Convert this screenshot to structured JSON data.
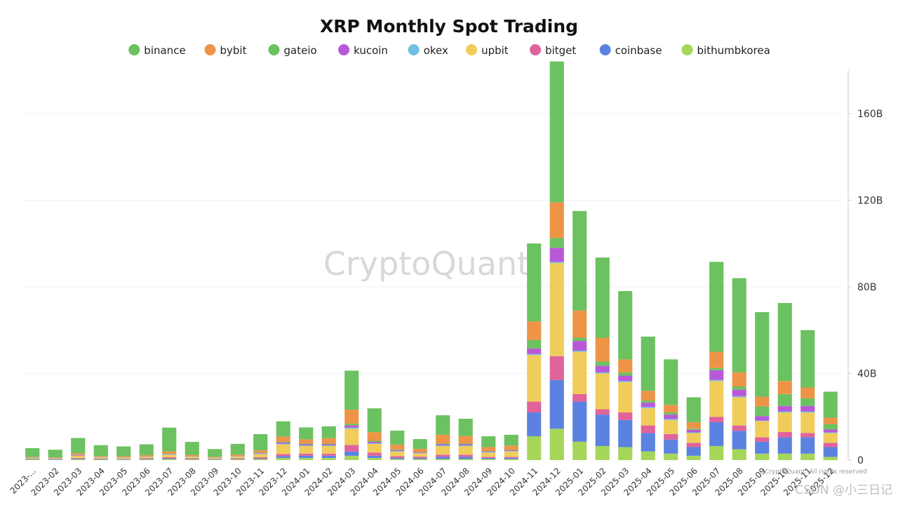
{
  "chart_data": {
    "type": "bar",
    "stacked": true,
    "title": "XRP Monthly Spot Trading",
    "xlabel": "",
    "ylabel": "",
    "ylim": [
      0,
      180
    ],
    "yticks": [
      0,
      40,
      80,
      120,
      160
    ],
    "ytick_labels": [
      "0",
      "40B",
      "80B",
      "120B",
      "160B"
    ],
    "y_axis_position": "right",
    "legend_position": "top-center",
    "watermark": "CryptoQuant",
    "footer_watermark": "CSDN @小三日记",
    "copyright": "CryptoQuant. All rights reserved",
    "categories": [
      "2023-...",
      "2023-02",
      "2023-03",
      "2023-04",
      "2023-05",
      "2023-06",
      "2023-07",
      "2023-08",
      "2023-09",
      "2023-10",
      "2023-11",
      "2023-12",
      "2024-01",
      "2024-02",
      "2024-03",
      "2024-04",
      "2024-05",
      "2024-06",
      "2024-07",
      "2024-08",
      "2024-09",
      "2024-10",
      "2024-11",
      "2024-12",
      "2025-01",
      "2025-02",
      "2025-03",
      "2025-04",
      "2025-05",
      "2025-06",
      "2025-07",
      "2025-08",
      "2025-09",
      "2025-10",
      "2025-11",
      "2025-12"
    ],
    "series": [
      {
        "name": "bithumbkorea",
        "color": "#a5d65a",
        "values": [
          0.3,
          0.2,
          0.4,
          0.3,
          0.2,
          0.3,
          0.5,
          0.3,
          0.2,
          0.3,
          0.5,
          1.0,
          1.0,
          1.0,
          2.0,
          1.0,
          0.5,
          0.5,
          0.5,
          0.5,
          0.5,
          0.5,
          11,
          14.5,
          8.5,
          6.5,
          6.0,
          4.0,
          3.0,
          2.0,
          6.5,
          5.0,
          3.0,
          3.0,
          3.0,
          1.5
        ]
      },
      {
        "name": "coinbase",
        "color": "#5b82e0",
        "values": [
          0.2,
          0.2,
          0.3,
          0.2,
          0.2,
          0.2,
          0.3,
          0.2,
          0.2,
          0.2,
          0.3,
          0.8,
          1.0,
          1.0,
          2.0,
          1.0,
          0.5,
          0.5,
          1.0,
          1.0,
          0.5,
          0.5,
          11,
          22.5,
          18.5,
          14.5,
          12.5,
          8.5,
          6.5,
          4.0,
          11.0,
          8.5,
          5.5,
          7.5,
          7.5,
          4.5
        ]
      },
      {
        "name": "bitget",
        "color": "#e0639a",
        "values": [
          0.2,
          0.2,
          0.3,
          0.2,
          0.2,
          0.3,
          0.5,
          0.3,
          0.2,
          0.3,
          0.5,
          1.0,
          1.0,
          1.0,
          3.0,
          1.5,
          0.8,
          0.6,
          1.0,
          1.0,
          0.5,
          0.5,
          5.0,
          11.0,
          3.5,
          2.5,
          3.5,
          3.5,
          2.5,
          2.0,
          2.5,
          2.5,
          2.0,
          2.5,
          2.0,
          2.0
        ]
      },
      {
        "name": "upbit",
        "color": "#f0cd5a",
        "values": [
          0.3,
          0.2,
          1.0,
          0.5,
          0.5,
          0.6,
          1.2,
          0.7,
          0.4,
          0.8,
          1.5,
          4.5,
          3.5,
          3.5,
          7.5,
          4.0,
          2.2,
          1.5,
          4.0,
          4.0,
          2.0,
          2.5,
          21.5,
          43.0,
          19.5,
          16.5,
          14.0,
          8.0,
          6.5,
          4.5,
          16.5,
          13.0,
          7.5,
          9.0,
          9.5,
          4.5
        ]
      },
      {
        "name": "okex",
        "color": "#6ec1e4",
        "values": [
          0.1,
          0.1,
          0.1,
          0.1,
          0.1,
          0.1,
          0.1,
          0.1,
          0.1,
          0.1,
          0.2,
          0.3,
          0.3,
          0.3,
          0.5,
          0.3,
          0.2,
          0.1,
          0.3,
          0.3,
          0.2,
          0.2,
          0.5,
          0.5,
          0.5,
          0.5,
          0.5,
          0.5,
          0.5,
          0.3,
          0.5,
          0.5,
          0.3,
          0.5,
          0.5,
          0.3
        ]
      },
      {
        "name": "kucoin",
        "color": "#b858d8",
        "values": [
          0.1,
          0.1,
          0.2,
          0.1,
          0.1,
          0.1,
          0.2,
          0.1,
          0.1,
          0.1,
          0.3,
          0.5,
          0.5,
          0.5,
          1.0,
          0.6,
          0.4,
          0.3,
          0.5,
          0.5,
          0.3,
          0.3,
          2.5,
          6.5,
          4.5,
          3.0,
          2.5,
          2.0,
          2.0,
          1.2,
          4.5,
          3.0,
          2.0,
          2.5,
          2.5,
          1.3
        ]
      },
      {
        "name": "gateio",
        "color": "#6cc160",
        "values": [
          0.1,
          0.1,
          0.1,
          0.1,
          0.1,
          0.1,
          0.2,
          0.1,
          0.1,
          0.1,
          0.2,
          0.3,
          0.3,
          0.3,
          0.8,
          0.5,
          0.3,
          0.2,
          0.4,
          0.3,
          0.2,
          0.2,
          4.0,
          4.5,
          1.5,
          2.0,
          1.5,
          1.0,
          1.0,
          0.5,
          1.0,
          1.5,
          4.5,
          5.5,
          3.5,
          2.5
        ]
      },
      {
        "name": "bybit",
        "color": "#ee9447",
        "values": [
          0.2,
          0.2,
          0.8,
          0.4,
          0.4,
          0.6,
          1.0,
          0.6,
          0.3,
          0.6,
          1.0,
          2.5,
          2.0,
          2.5,
          6.5,
          4.0,
          2.2,
          1.5,
          4.0,
          3.5,
          1.8,
          2.0,
          8.5,
          16.5,
          12.5,
          11.0,
          6.0,
          4.5,
          3.5,
          3.0,
          7.5,
          6.5,
          4.5,
          6.0,
          5.0,
          3.0
        ]
      },
      {
        "name": "binance",
        "color": "#6cc160",
        "values": [
          4.0,
          3.5,
          7.0,
          5.0,
          4.5,
          5.0,
          11.0,
          6.0,
          3.5,
          5.0,
          7.5,
          7.0,
          5.5,
          5.5,
          18.0,
          11.0,
          6.5,
          4.5,
          9.0,
          8.0,
          5.0,
          5.0,
          36.0,
          65.0,
          46.0,
          37.0,
          31.5,
          25.0,
          21.0,
          11.5,
          41.5,
          43.5,
          39.0,
          36.0,
          26.5,
          12.0
        ]
      }
    ],
    "legend_order": [
      "binance",
      "bybit",
      "gateio",
      "kucoin",
      "okex",
      "upbit",
      "bitget",
      "coinbase",
      "bithumbkorea"
    ]
  }
}
